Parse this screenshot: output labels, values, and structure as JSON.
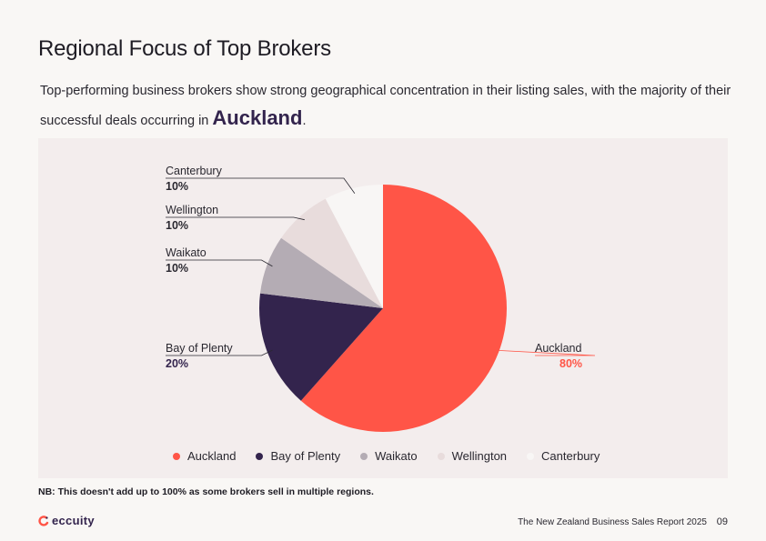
{
  "header": {
    "title": "Regional Focus of Top Brokers",
    "subtitle": "Top-performing business brokers show strong geographical concentration in their listing sales, with the majority of their successful deals occurring in",
    "highlight": "Auckland",
    "subtitle_end": "."
  },
  "chart_data": {
    "type": "pie",
    "start_angle_deg": 0,
    "direction": "clockwise",
    "slices": [
      {
        "label": "Auckland",
        "value": 80,
        "value_label": "80%",
        "color": "#ff5547"
      },
      {
        "label": "Bay of Plenty",
        "value": 20,
        "value_label": "20%",
        "color": "#33244d"
      },
      {
        "label": "Waikato",
        "value": 10,
        "value_label": "10%",
        "color": "#b4acb4"
      },
      {
        "label": "Wellington",
        "value": 10,
        "value_label": "10%",
        "color": "#e8dcdc"
      },
      {
        "label": "Canterbury",
        "value": 10,
        "value_label": "10%",
        "color": "#f8f6f5"
      }
    ],
    "legend_position": "bottom"
  },
  "note": "NB: This doesn't add up to 100% as some brokers sell in multiple regions.",
  "brand": {
    "name": "eccuity",
    "color": "#33244d",
    "accent": "#ff5547"
  },
  "footer": {
    "report": "The New Zealand Business Sales  Report 2025",
    "page": "09"
  }
}
